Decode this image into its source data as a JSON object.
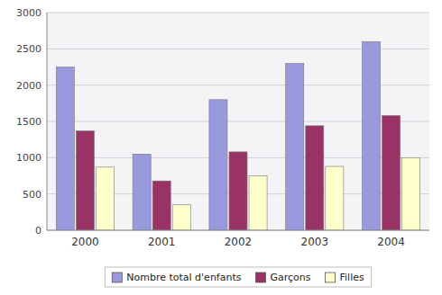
{
  "chart_data": {
    "type": "bar",
    "categories": [
      "2000",
      "2001",
      "2002",
      "2003",
      "2004"
    ],
    "series": [
      {
        "name": "Nombre total d'enfants",
        "color": "#9999dd",
        "values": [
          2250,
          1050,
          1800,
          2300,
          2600
        ]
      },
      {
        "name": "Garçons",
        "color": "#993366",
        "values": [
          1370,
          680,
          1080,
          1440,
          1580
        ]
      },
      {
        "name": "Filles",
        "color": "#ffffcc",
        "values": [
          870,
          350,
          750,
          880,
          1000
        ]
      }
    ],
    "ylim": [
      0,
      3000
    ],
    "yticks": [
      0,
      500,
      1000,
      1500,
      2000,
      2500,
      3000
    ],
    "grid": true,
    "legend": "bottom"
  }
}
